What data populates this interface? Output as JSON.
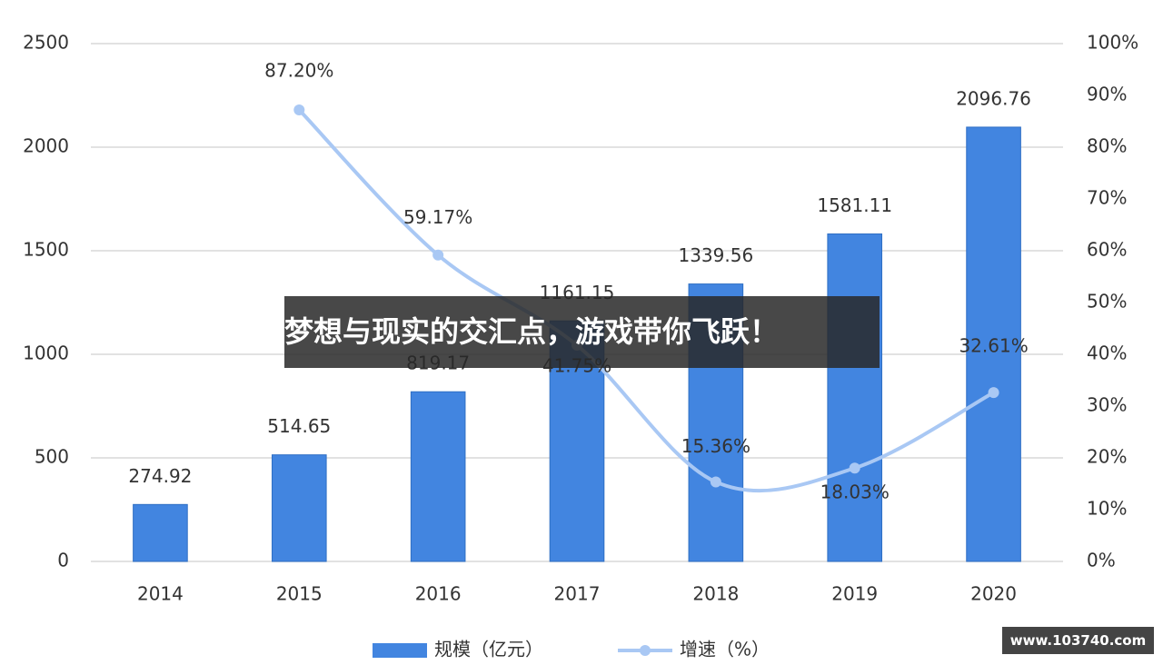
{
  "chart_data": {
    "type": "bar",
    "categories": [
      "2014",
      "2015",
      "2016",
      "2017",
      "2018",
      "2019",
      "2020"
    ],
    "series": [
      {
        "name": "规模（亿元）",
        "type": "bar",
        "color": "#4285e0",
        "values": [
          274.92,
          514.65,
          819.17,
          1161.15,
          1339.56,
          1581.11,
          2096.76
        ]
      },
      {
        "name": "增速（%）",
        "type": "line",
        "axis": "y2",
        "color": "#a9c8f4",
        "values": [
          null,
          87.2,
          59.17,
          41.75,
          15.36,
          18.03,
          32.61
        ],
        "value_labels": [
          null,
          "87.20%",
          "59.17%",
          "41.75%",
          "15.36%",
          "18.03%",
          "32.61%"
        ]
      }
    ],
    "ylim": [
      0,
      2500
    ],
    "yticks": [
      0,
      500,
      1000,
      1500,
      2000,
      2500
    ],
    "y2lim": [
      0,
      100
    ],
    "y2ticks": [
      {
        "value": 0,
        "label": "0%"
      },
      {
        "value": 10,
        "label": "10%"
      },
      {
        "value": 20,
        "label": "20%"
      },
      {
        "value": 30,
        "label": "30%"
      },
      {
        "value": 40,
        "label": "40%"
      },
      {
        "value": 50,
        "label": "50%"
      },
      {
        "value": 60,
        "label": "60%"
      },
      {
        "value": 70,
        "label": "70%"
      },
      {
        "value": 80,
        "label": "80%"
      },
      {
        "value": 90,
        "label": "90%"
      },
      {
        "value": 100,
        "label": "100%"
      }
    ],
    "grid": true,
    "legend": "bottom"
  },
  "overlay": {
    "banner": "梦想与现实的交汇点，游戏带你飞跃！",
    "badge": "www.103740.com"
  }
}
